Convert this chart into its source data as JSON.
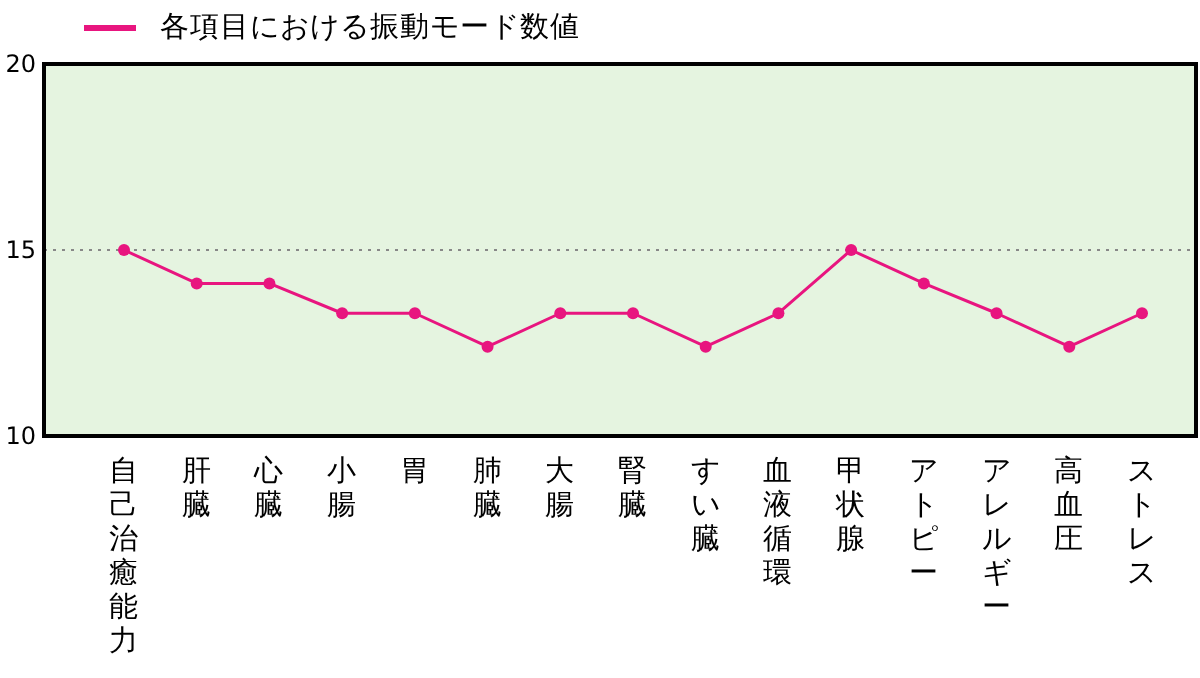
{
  "chart_data": {
    "type": "line",
    "categories": [
      "自己治癒能力",
      "肝臓",
      "心臓",
      "小腸",
      "胃",
      "肺臓",
      "大腸",
      "腎臓",
      "すい臓",
      "血液循環",
      "甲状腺",
      "アトピー",
      "アレルギー",
      "高血圧",
      "ストレス"
    ],
    "series": [
      {
        "name": "各項目における振動モード数値",
        "color": "#e8157f",
        "values": [
          15,
          14.1,
          14.1,
          13.3,
          13.3,
          12.4,
          13.3,
          13.3,
          12.4,
          13.3,
          15,
          14.1,
          13.3,
          12.4,
          13.3
        ]
      }
    ],
    "ylim": [
      10,
      20
    ],
    "yticks": [
      10,
      15,
      20
    ],
    "ref_lines": [
      {
        "axis": "y",
        "value": 15,
        "line_style": "dotted",
        "color": "#888888"
      }
    ],
    "legend": "top left",
    "marker": "circle",
    "line_style": "solid",
    "grid": false
  }
}
